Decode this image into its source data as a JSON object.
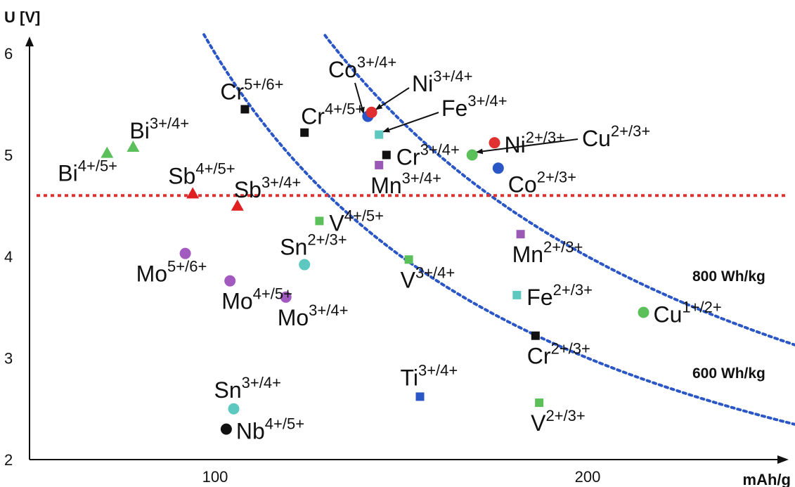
{
  "chart_data": {
    "type": "scatter",
    "ylabel": "U [V]",
    "xlabel": "mAh/g",
    "x_ticks": [
      100,
      200
    ],
    "y_ticks": [
      2,
      3,
      4,
      5,
      6
    ],
    "xlim": [
      50,
      260
    ],
    "ylim": [
      2,
      6.2
    ],
    "grid": false,
    "points": [
      {
        "symbol": "Bi",
        "ox": "4+/5+",
        "x": 71,
        "y": 5.02,
        "marker": "triangle",
        "color": "#5cc05a",
        "label_dir": "lower-left"
      },
      {
        "symbol": "Bi",
        "ox": "3+/4+",
        "x": 78,
        "y": 5.08,
        "marker": "triangle",
        "color": "#5cc05a",
        "label_dir": "upper-right"
      },
      {
        "symbol": "Sb",
        "ox": "4+/5+",
        "x": 94,
        "y": 4.62,
        "marker": "triangle",
        "color": "#e02020",
        "label_dir": "upper-left"
      },
      {
        "symbol": "Sb",
        "ox": "3+/4+",
        "x": 106,
        "y": 4.5,
        "marker": "triangle",
        "color": "#e02020",
        "label_dir": "upper-right"
      },
      {
        "symbol": "Cr",
        "ox": "5+/6+",
        "x": 108,
        "y": 5.45,
        "marker": "square",
        "color": "#111111",
        "label_dir": "upper-left"
      },
      {
        "symbol": "Cr",
        "ox": "4+/5+",
        "x": 124,
        "y": 5.22,
        "marker": "square",
        "color": "#111111",
        "label_dir": "upper-right"
      },
      {
        "symbol": "Co",
        "ox": "3+/4+",
        "x": 141,
        "y": 5.38,
        "marker": "circle",
        "color": "#2a56c6",
        "label_dir": "arrow"
      },
      {
        "symbol": "Ni",
        "ox": "3+/4+",
        "x": 142,
        "y": 5.42,
        "marker": "circle",
        "color": "#e03030",
        "label_dir": "arrow"
      },
      {
        "symbol": "Fe",
        "ox": "3+/4+",
        "x": 144,
        "y": 5.2,
        "marker": "square",
        "color": "#5cc8c0",
        "label_dir": "arrow"
      },
      {
        "symbol": "Cr",
        "ox": "3+/4+",
        "x": 146,
        "y": 5.0,
        "marker": "square",
        "color": "#111111",
        "label_dir": "right"
      },
      {
        "symbol": "Mn",
        "ox": "3+/4+",
        "x": 144,
        "y": 4.9,
        "marker": "square",
        "color": "#9b59b6",
        "label_dir": "below"
      },
      {
        "symbol": "Ni",
        "ox": "2+/3+",
        "x": 175,
        "y": 5.12,
        "marker": "circle",
        "color": "#e03030",
        "label_dir": "right"
      },
      {
        "symbol": "Cu",
        "ox": "2+/3+",
        "x": 169,
        "y": 5.0,
        "marker": "circle",
        "color": "#5cc05a",
        "label_dir": "arrow"
      },
      {
        "symbol": "Co",
        "ox": "2+/3+",
        "x": 176,
        "y": 4.87,
        "marker": "circle",
        "color": "#2a56c6",
        "label_dir": "lower-right"
      },
      {
        "symbol": "V",
        "ox": "4+/5+",
        "x": 128,
        "y": 4.35,
        "marker": "square",
        "color": "#5cc05a",
        "label_dir": "right"
      },
      {
        "symbol": "Mo",
        "ox": "5+/6+",
        "x": 92,
        "y": 4.03,
        "marker": "circle",
        "color": "#a259c0",
        "label_dir": "lower-left"
      },
      {
        "symbol": "Mo",
        "ox": "4+/5+",
        "x": 104,
        "y": 3.76,
        "marker": "circle",
        "color": "#a259c0",
        "label_dir": "below"
      },
      {
        "symbol": "Mo",
        "ox": "3+/4+",
        "x": 119,
        "y": 3.6,
        "marker": "circle",
        "color": "#a259c0",
        "label_dir": "below"
      },
      {
        "symbol": "Sn",
        "ox": "2+/3+",
        "x": 124,
        "y": 3.92,
        "marker": "circle",
        "color": "#5cc8c0",
        "label_dir": "upper-left"
      },
      {
        "symbol": "V",
        "ox": "3+/4+",
        "x": 152,
        "y": 3.97,
        "marker": "square",
        "color": "#5cc05a",
        "label_dir": "below"
      },
      {
        "symbol": "Mn",
        "ox": "2+/3+",
        "x": 182,
        "y": 4.22,
        "marker": "square",
        "color": "#9b59b6",
        "label_dir": "below"
      },
      {
        "symbol": "Fe",
        "ox": "2+/3+",
        "x": 181,
        "y": 3.62,
        "marker": "square",
        "color": "#5cc8c0",
        "label_dir": "right"
      },
      {
        "symbol": "Cu",
        "ox": "1+/2+",
        "x": 215,
        "y": 3.45,
        "marker": "circle",
        "color": "#5cc05a",
        "label_dir": "right"
      },
      {
        "symbol": "Cr",
        "ox": "2+/3+",
        "x": 186,
        "y": 3.22,
        "marker": "square",
        "color": "#111111",
        "label_dir": "below"
      },
      {
        "symbol": "Ti",
        "ox": "3+/4+",
        "x": 155,
        "y": 2.62,
        "marker": "square",
        "color": "#2a56c6",
        "label_dir": "above"
      },
      {
        "symbol": "V",
        "ox": "2+/3+",
        "x": 187,
        "y": 2.56,
        "marker": "square",
        "color": "#5cc05a",
        "label_dir": "below"
      },
      {
        "symbol": "Sn",
        "ox": "3+/4+",
        "x": 105,
        "y": 2.5,
        "marker": "circle",
        "color": "#5cc8c0",
        "label_dir": "above"
      },
      {
        "symbol": "Nb",
        "ox": "4+/5+",
        "x": 103,
        "y": 2.3,
        "marker": "circle",
        "color": "#111111",
        "label_dir": "right"
      }
    ],
    "reference_lines": [
      {
        "type": "horizontal",
        "y": 4.6,
        "color": "#e03030",
        "style": "dotted"
      }
    ],
    "energy_curves": [
      {
        "label": "800 Wh/kg",
        "energy": 800,
        "color": "#2a56c6",
        "style": "dotted"
      },
      {
        "label": "600 Wh/kg",
        "energy": 600,
        "color": "#2a56c6",
        "style": "dotted"
      }
    ]
  }
}
